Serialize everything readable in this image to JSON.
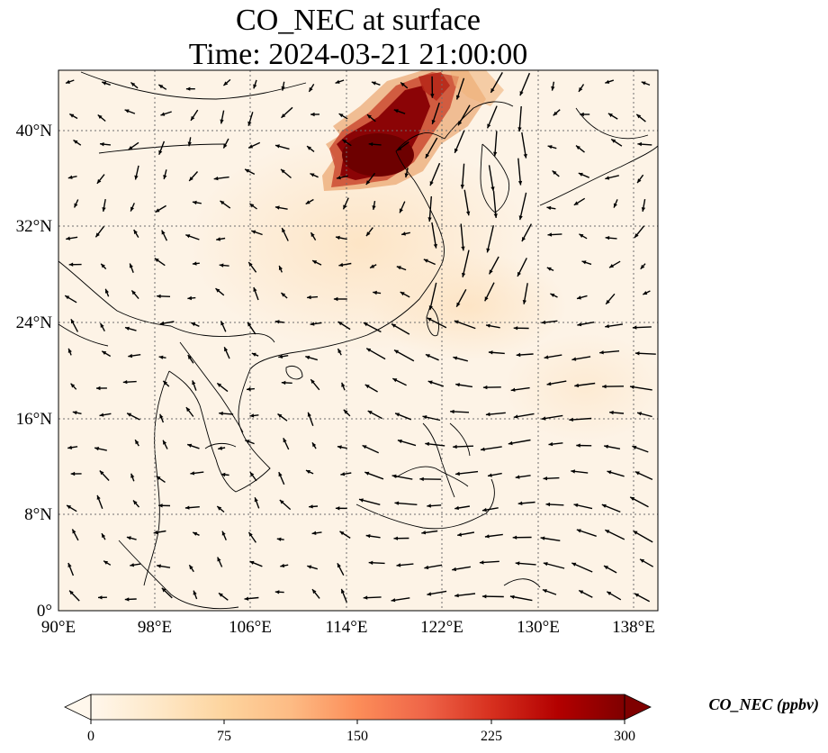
{
  "title": {
    "line1": "CO_NEC at surface",
    "line2": "Time: 2024-03-21 21:00:00"
  },
  "map": {
    "lon_range": [
      90,
      140
    ],
    "lat_range": [
      0,
      45
    ],
    "x_ticks": [
      {
        "value": 90,
        "label": "90°E"
      },
      {
        "value": 98,
        "label": "98°E"
      },
      {
        "value": 106,
        "label": "106°E"
      },
      {
        "value": 114,
        "label": "114°E"
      },
      {
        "value": 122,
        "label": "122°E"
      },
      {
        "value": 130,
        "label": "130°E"
      },
      {
        "value": 138,
        "label": "138°E"
      }
    ],
    "y_ticks": [
      {
        "value": 0,
        "label": "0°"
      },
      {
        "value": 8,
        "label": "8°N"
      },
      {
        "value": 16,
        "label": "16°N"
      },
      {
        "value": 24,
        "label": "24°N"
      },
      {
        "value": 32,
        "label": "32°N"
      },
      {
        "value": 40,
        "label": "40°N"
      }
    ],
    "gridlines": true,
    "field_color": "#fdf3e6",
    "plume_color": "#7a0000",
    "coast_color": "#000000",
    "arrow_color": "#000000"
  },
  "colorbar": {
    "min": 0,
    "max": 300,
    "ticks": [
      {
        "value": 0,
        "label": "0"
      },
      {
        "value": 75,
        "label": "75"
      },
      {
        "value": 150,
        "label": "150"
      },
      {
        "value": 225,
        "label": "225"
      },
      {
        "value": 300,
        "label": "300"
      }
    ],
    "label": "CO_NEC (ppbv)",
    "extend": "both",
    "colors": [
      "#fff7ec",
      "#fee8c8",
      "#fdd49e",
      "#fdbb84",
      "#fc8d59",
      "#ef6548",
      "#d7301f",
      "#b30000",
      "#7f0000"
    ]
  }
}
